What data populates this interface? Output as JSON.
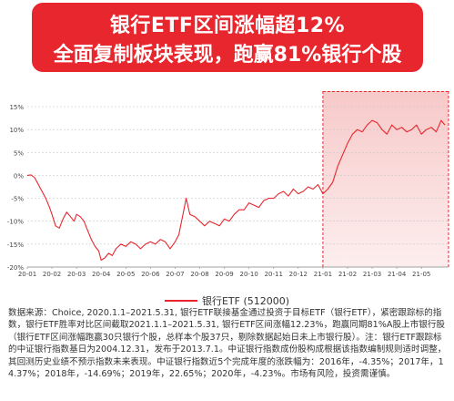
{
  "banner": {
    "line1": "银行ETF区间涨幅超12%",
    "line2": "全面复制板块表现，跑赢81%银行个股"
  },
  "chart_data": {
    "type": "line",
    "title": "",
    "xlabel": "",
    "ylabel": "",
    "y_ticks": [
      "15%",
      "10%",
      "5%",
      "0%",
      "-5%",
      "-10%",
      "-15%",
      "-20%"
    ],
    "ylim": [
      -0.2,
      0.16
    ],
    "x_ticks": [
      "20-01",
      "20-02",
      "20-03",
      "20-04",
      "20-05",
      "20-06",
      "20-07",
      "20-08",
      "20-09",
      "20-10",
      "20-11",
      "20-12",
      "21-01",
      "21-02",
      "21-03",
      "21-04",
      "21-05"
    ],
    "grid": "horizontal-dotted",
    "highlight_region": {
      "from": "21-01",
      "to": "21-05-31"
    },
    "series": [
      {
        "name": "银行ETF (512000)",
        "color": "#e8262d",
        "x": [
          0,
          0.15,
          0.3,
          0.45,
          0.6,
          0.75,
          0.9,
          1.0,
          1.15,
          1.3,
          1.45,
          1.6,
          1.75,
          1.9,
          2.0,
          2.15,
          2.3,
          2.45,
          2.6,
          2.75,
          2.9,
          3.0,
          3.15,
          3.3,
          3.45,
          3.6,
          3.8,
          4.0,
          4.2,
          4.4,
          4.6,
          4.8,
          5.0,
          5.2,
          5.4,
          5.6,
          5.8,
          6.0,
          6.15,
          6.3,
          6.45,
          6.6,
          6.8,
          7.0,
          7.2,
          7.4,
          7.6,
          7.8,
          8.0,
          8.2,
          8.4,
          8.6,
          8.8,
          9.0,
          9.2,
          9.4,
          9.6,
          9.8,
          10.0,
          10.2,
          10.4,
          10.6,
          10.8,
          11.0,
          11.2,
          11.4,
          11.6,
          11.8,
          12.0,
          12.2,
          12.4,
          12.6,
          12.8,
          13.0,
          13.2,
          13.4,
          13.6,
          13.8,
          14.0,
          14.2,
          14.4,
          14.6,
          14.8,
          15.0,
          15.2,
          15.4,
          15.6,
          15.8,
          16.0,
          16.2,
          16.4,
          16.6,
          16.8,
          16.95
        ],
        "values": [
          0.0,
          0.001,
          -0.005,
          -0.02,
          -0.035,
          -0.05,
          -0.07,
          -0.085,
          -0.11,
          -0.115,
          -0.095,
          -0.08,
          -0.09,
          -0.1,
          -0.085,
          -0.09,
          -0.1,
          -0.12,
          -0.14,
          -0.155,
          -0.165,
          -0.185,
          -0.18,
          -0.17,
          -0.175,
          -0.16,
          -0.15,
          -0.155,
          -0.145,
          -0.15,
          -0.16,
          -0.15,
          -0.145,
          -0.15,
          -0.14,
          -0.145,
          -0.16,
          -0.145,
          -0.13,
          -0.09,
          -0.05,
          -0.085,
          -0.09,
          -0.1,
          -0.11,
          -0.1,
          -0.105,
          -0.11,
          -0.095,
          -0.1,
          -0.085,
          -0.075,
          -0.075,
          -0.06,
          -0.065,
          -0.07,
          -0.055,
          -0.05,
          -0.05,
          -0.04,
          -0.035,
          -0.045,
          -0.03,
          -0.04,
          -0.035,
          -0.025,
          -0.03,
          -0.02,
          -0.04,
          -0.03,
          -0.015,
          0.02,
          0.045,
          0.07,
          0.09,
          0.1,
          0.095,
          0.11,
          0.12,
          0.115,
          0.1,
          0.09,
          0.11,
          0.1,
          0.105,
          0.095,
          0.1,
          0.11,
          0.09,
          0.1,
          0.105,
          0.095,
          0.12,
          0.11
        ]
      }
    ]
  },
  "legend_label": "银行ETF (512000)",
  "source_note": "数据来源：Choice, 2020.1.1–2021.5.31, 银行ETF联接基金通过投资于目标ETF（银行ETF），紧密跟踪标的指数，银行ETF胜率对比区间截取2021.1.1–2021.5.31, 银行ETF区间涨幅12.23%，跑赢同期81%A股上市银行股（银行ETF区间涨幅跑赢30只银行个股，总样本个股37只，剔除数据起始日未上市银行股）。注：银行ETF跟踪标的中证银行指数基日为2004.12.31，发布于2013.7.1。中证银行指数成份股构成根据该指数编制规则适时调整，其回测历史业绩不预示指数未来表现。中证银行指数近5个完成年度的涨跌幅为：2016年，-4.35%；2017年，14.37%；2018年，-14.69%；2019年，22.65%；2020年，-4.23%。市场有风险，投资需谨慎。"
}
